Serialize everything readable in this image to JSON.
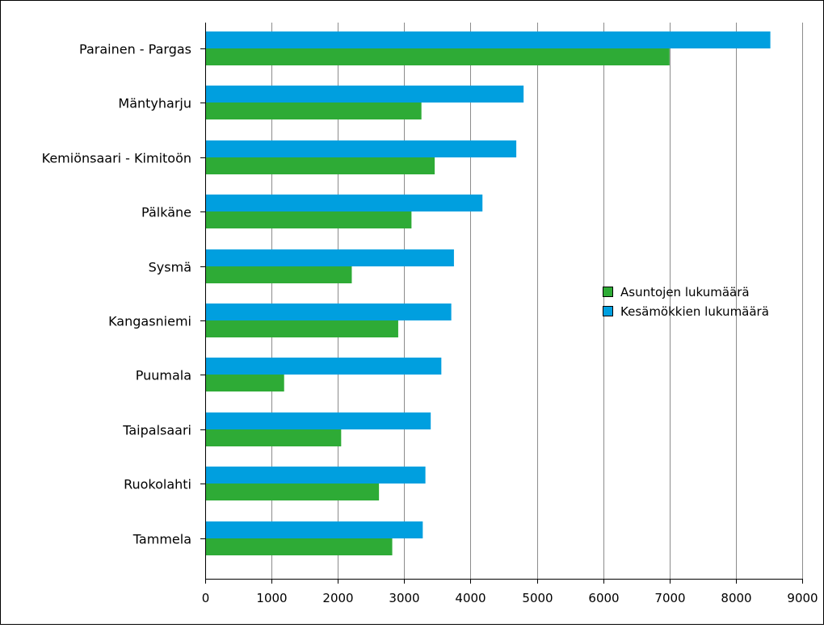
{
  "chart_data": {
    "type": "bar",
    "orientation": "horizontal",
    "categories": [
      "Parainen - Pargas",
      "Mäntyharju",
      "Kemiönsaari - Kimitoön",
      "Pälkäne",
      "Sysmä",
      "Kangasniemi",
      "Puumala",
      "Taipalsaari",
      "Ruokolahti",
      "Tammela"
    ],
    "series": [
      {
        "name": "Kesämökkien lukumäärä",
        "color": "#009fdf",
        "values": [
          8520,
          4800,
          4690,
          4180,
          3750,
          3710,
          3560,
          3400,
          3320,
          3280
        ]
      },
      {
        "name": "Asuntojen lukumäärä",
        "color": "#2eab36",
        "values": [
          7000,
          3260,
          3460,
          3110,
          2210,
          2910,
          1190,
          2050,
          2620,
          2820
        ]
      }
    ],
    "legend": {
      "placement": "right",
      "entries": [
        {
          "name": "Asuntojen lukumäärä",
          "color": "#2eab36"
        },
        {
          "name": "Kesämökkien lukumäärä",
          "color": "#009fdf"
        }
      ]
    },
    "x_ticks": [
      "0",
      "1000",
      "2000",
      "3000",
      "4000",
      "5000",
      "6000",
      "7000",
      "8000",
      "9000"
    ],
    "xlim": [
      0,
      9000
    ],
    "grid": "vertical",
    "title": "",
    "xlabel": "",
    "ylabel": ""
  }
}
